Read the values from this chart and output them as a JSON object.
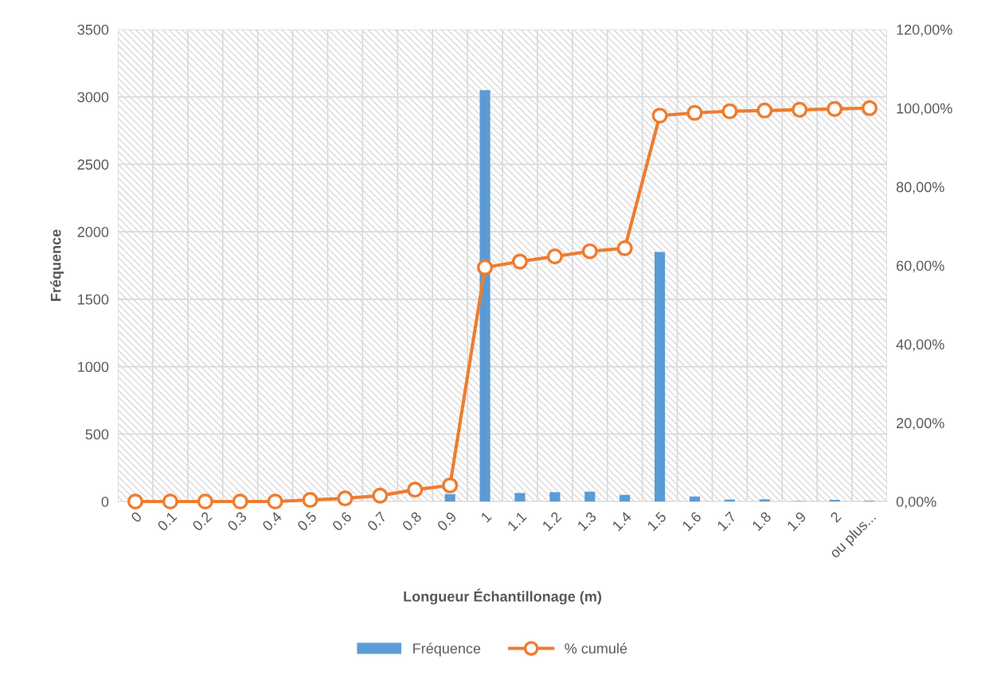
{
  "chart_data": {
    "type": "bar",
    "xlabel": "Longueur Échantillonage (m)",
    "ylabel": "Fréquence",
    "categories": [
      "0",
      "0.1",
      "0.2",
      "0.3",
      "0.4",
      "0.5",
      "0.6",
      "0.7",
      "0.8",
      "0.9",
      "1",
      "1.1",
      "1.2",
      "1.3",
      "1.4",
      "1.5",
      "1.6",
      "1.7",
      "1.8",
      "1.9",
      "2",
      "ou plus..."
    ],
    "series": [
      {
        "name": "Fréquence",
        "color": "#5b9bd5",
        "values": [
          0,
          0,
          0,
          0,
          0,
          null,
          null,
          null,
          null,
          55,
          3050,
          63,
          69,
          73,
          49,
          1850,
          37,
          14,
          16,
          3,
          12,
          5
        ]
      },
      {
        "name": "% cumulé",
        "type": "line",
        "axis": "y2",
        "color": "#ed7d31",
        "marker": "circle",
        "values": [
          0,
          0,
          0,
          0,
          0,
          0.4,
          0.8,
          1.5,
          3.0,
          4.1,
          59.5,
          61,
          62.3,
          63.6,
          64.4,
          98.1,
          98.8,
          99.2,
          99.4,
          99.6,
          99.8,
          100
        ]
      }
    ],
    "ylim": [
      0,
      3500
    ],
    "yticks": [
      0,
      500,
      1000,
      1500,
      2000,
      2500,
      3000,
      3500
    ],
    "y2lim": [
      0,
      120
    ],
    "y2ticks": [
      {
        "value": 0,
        "label": "0,00%"
      },
      {
        "value": 20,
        "label": "20,00%"
      },
      {
        "value": 40,
        "label": "40,00%"
      },
      {
        "value": 60,
        "label": "60,00%"
      },
      {
        "value": 80,
        "label": "80,00%"
      },
      {
        "value": 100,
        "label": "100,00%"
      },
      {
        "value": 120,
        "label": "120,00%"
      }
    ],
    "grid": true,
    "legend": "bottom"
  }
}
